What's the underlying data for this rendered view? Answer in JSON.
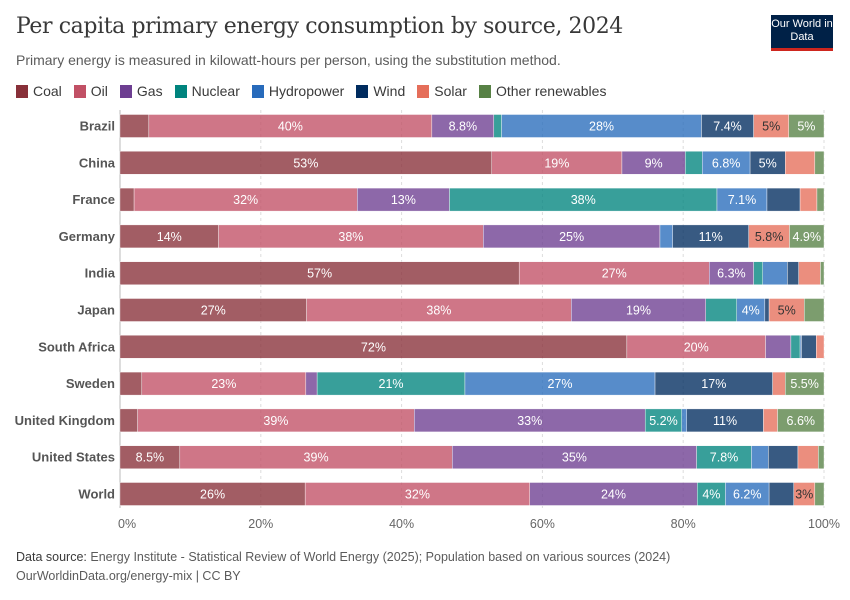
{
  "header": {
    "title": "Per capita primary energy consumption by source, 2024",
    "subtitle": "Primary energy is measured in kilowatt-hours per person, using the substitution method.",
    "logo_text": "Our World in Data"
  },
  "footer": {
    "source_label": "Data source:",
    "source_text": "Energy Institute - Statistical Review of World Energy (2025); Population based on various sources (2024)",
    "url_license": "OurWorldinData.org/energy-mix | CC BY"
  },
  "chart_data": {
    "type": "bar",
    "orientation": "horizontal",
    "stacked": true,
    "relative": true,
    "title": "Per capita primary energy consumption by source, 2024",
    "xlim": [
      0,
      100
    ],
    "x_ticks": [
      "0%",
      "20%",
      "40%",
      "60%",
      "80%",
      "100%"
    ],
    "grid": "vertical dashed",
    "legend_position": "top",
    "categories": [
      "Brazil",
      "China",
      "France",
      "Germany",
      "India",
      "Japan",
      "South Africa",
      "Sweden",
      "United Kingdom",
      "United States",
      "World"
    ],
    "series": [
      {
        "name": "Coal",
        "color": "#883039",
        "values": [
          4.1,
          52.8,
          2.0,
          14.0,
          56.7,
          26.5,
          72.0,
          3.1,
          2.5,
          8.5,
          26.3
        ]
      },
      {
        "name": "Oil",
        "color": "#C15065",
        "values": [
          40.2,
          18.5,
          31.7,
          37.6,
          27.0,
          37.6,
          19.7,
          23.3,
          39.3,
          38.7,
          31.9
        ]
      },
      {
        "name": "Gas",
        "color": "#6D3E91",
        "values": [
          8.8,
          9.0,
          13.1,
          25.1,
          6.3,
          19.1,
          3.6,
          1.6,
          32.8,
          34.7,
          23.8
        ]
      },
      {
        "name": "Nuclear",
        "color": "#00847E",
        "values": [
          1.1,
          2.4,
          38.0,
          0,
          1.3,
          4.4,
          1.3,
          21.0,
          5.2,
          7.8,
          4.0
        ]
      },
      {
        "name": "Hydropower",
        "color": "#286BBB",
        "values": [
          28.4,
          6.8,
          7.1,
          1.8,
          3.5,
          4.0,
          0.2,
          27.0,
          0.7,
          2.4,
          6.2
        ]
      },
      {
        "name": "Wind",
        "color": "#002C5F",
        "values": [
          7.4,
          5.0,
          4.7,
          10.8,
          1.6,
          0.6,
          2.1,
          16.7,
          10.9,
          4.2,
          3.5
        ]
      },
      {
        "name": "Solar",
        "color": "#E56E5A",
        "values": [
          5.0,
          4.2,
          2.4,
          5.8,
          3.1,
          5.0,
          1.1,
          1.8,
          2.0,
          2.9,
          3.0
        ]
      },
      {
        "name": "Other renewables",
        "color": "#578145",
        "values": [
          5.0,
          1.3,
          1.0,
          4.9,
          0.5,
          2.8,
          0,
          5.5,
          6.6,
          0.8,
          1.3
        ]
      }
    ]
  }
}
